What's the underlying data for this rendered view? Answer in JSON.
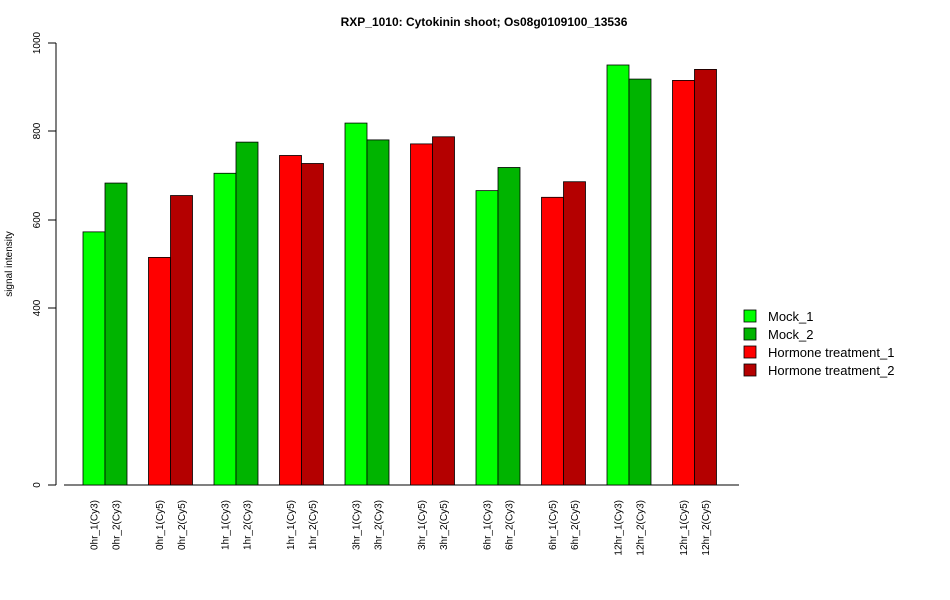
{
  "chart_data": {
    "type": "bar",
    "title": "RXP_1010: Cytokinin shoot; Os08g0109100_13536",
    "xlabel": "",
    "ylabel": "signal intensity",
    "y_ticks": [
      0,
      400,
      600,
      800,
      1000
    ],
    "y_tick_labels": [
      "0",
      "400",
      "600",
      "800",
      "1000"
    ],
    "grid": false,
    "legend_position": "right",
    "categories": [
      "0hr_1(Cy3)",
      "0hr_2(Cy3)",
      "0hr_1(Cy5)",
      "0hr_2(Cy5)",
      "1hr_1(Cy3)",
      "1hr_2(Cy3)",
      "1hr_1(Cy5)",
      "1hr_2(Cy5)",
      "3hr_1(Cy3)",
      "3hr_2(Cy3)",
      "3hr_1(Cy5)",
      "3hr_2(Cy5)",
      "6hr_1(Cy3)",
      "6hr_2(Cy3)",
      "6hr_1(Cy5)",
      "6hr_2(Cy5)",
      "12hr_1(Cy3)",
      "12hr_2(Cy3)",
      "12hr_1(Cy5)",
      "12hr_2(Cy5)"
    ],
    "values": [
      573,
      683,
      515,
      655,
      705,
      775,
      745,
      727,
      818,
      780,
      771,
      787,
      666,
      718,
      651,
      686,
      950,
      918,
      915,
      940
    ],
    "series_index": [
      0,
      1,
      2,
      3,
      0,
      1,
      2,
      3,
      0,
      1,
      2,
      3,
      0,
      1,
      2,
      3,
      0,
      1,
      2,
      3
    ],
    "legend": [
      {
        "name": "Mock_1",
        "color": "#00ff00"
      },
      {
        "name": "Mock_2",
        "color": "#00b400"
      },
      {
        "name": "Hormone treatment_1",
        "color": "#ff0000"
      },
      {
        "name": "Hormone treatment_2",
        "color": "#b40000"
      }
    ]
  }
}
